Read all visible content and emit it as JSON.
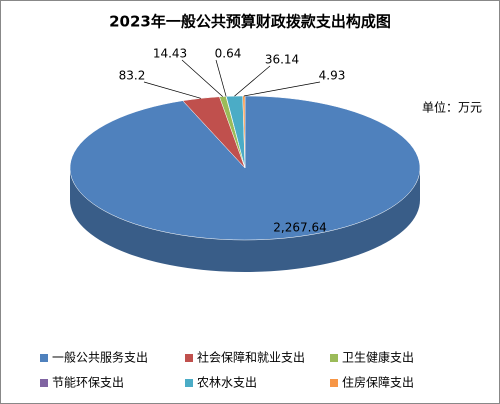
{
  "chart_data": {
    "type": "pie3d",
    "title": "2023年一般公共预算财政拨款支出构成图",
    "unit_note": "单位：万元",
    "categories": [
      "一般公共服务支出",
      "社会保障和就业支出",
      "卫生健康支出",
      "节能环保支出",
      "农林水支出",
      "住房保障支出"
    ],
    "values": [
      2267.64,
      83.2,
      14.43,
      0.64,
      36.14,
      4.93
    ],
    "value_labels": [
      "2,267.64",
      "83.2",
      "14.43",
      "0.64",
      "36.14",
      "4.93"
    ],
    "colors": [
      "#4f81bd",
      "#c0504d",
      "#9bbb59",
      "#8064a2",
      "#4bacc6",
      "#f79646"
    ],
    "legend": "bottom"
  }
}
